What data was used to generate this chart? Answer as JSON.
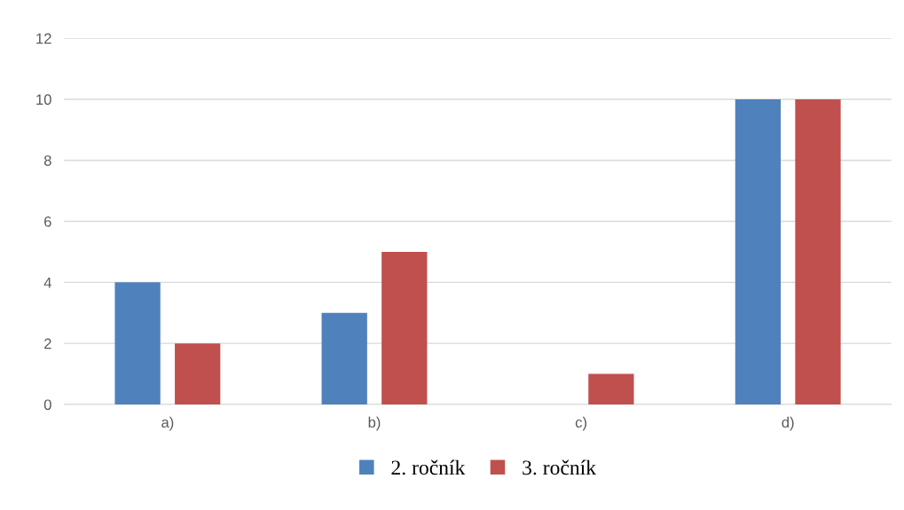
{
  "chart_data": {
    "type": "bar",
    "categories": [
      "a)",
      "b)",
      "c)",
      "d)"
    ],
    "series": [
      {
        "name": "2. ročník",
        "color": "#4f81bd",
        "values": [
          4,
          3,
          0,
          10
        ]
      },
      {
        "name": "3. ročník",
        "color": "#c0504d",
        "values": [
          2,
          5,
          1,
          10
        ]
      }
    ],
    "ylim": [
      0,
      12
    ],
    "yticks": [
      0,
      2,
      4,
      6,
      8,
      10,
      12
    ],
    "grid": "y",
    "legend": "bottom"
  }
}
